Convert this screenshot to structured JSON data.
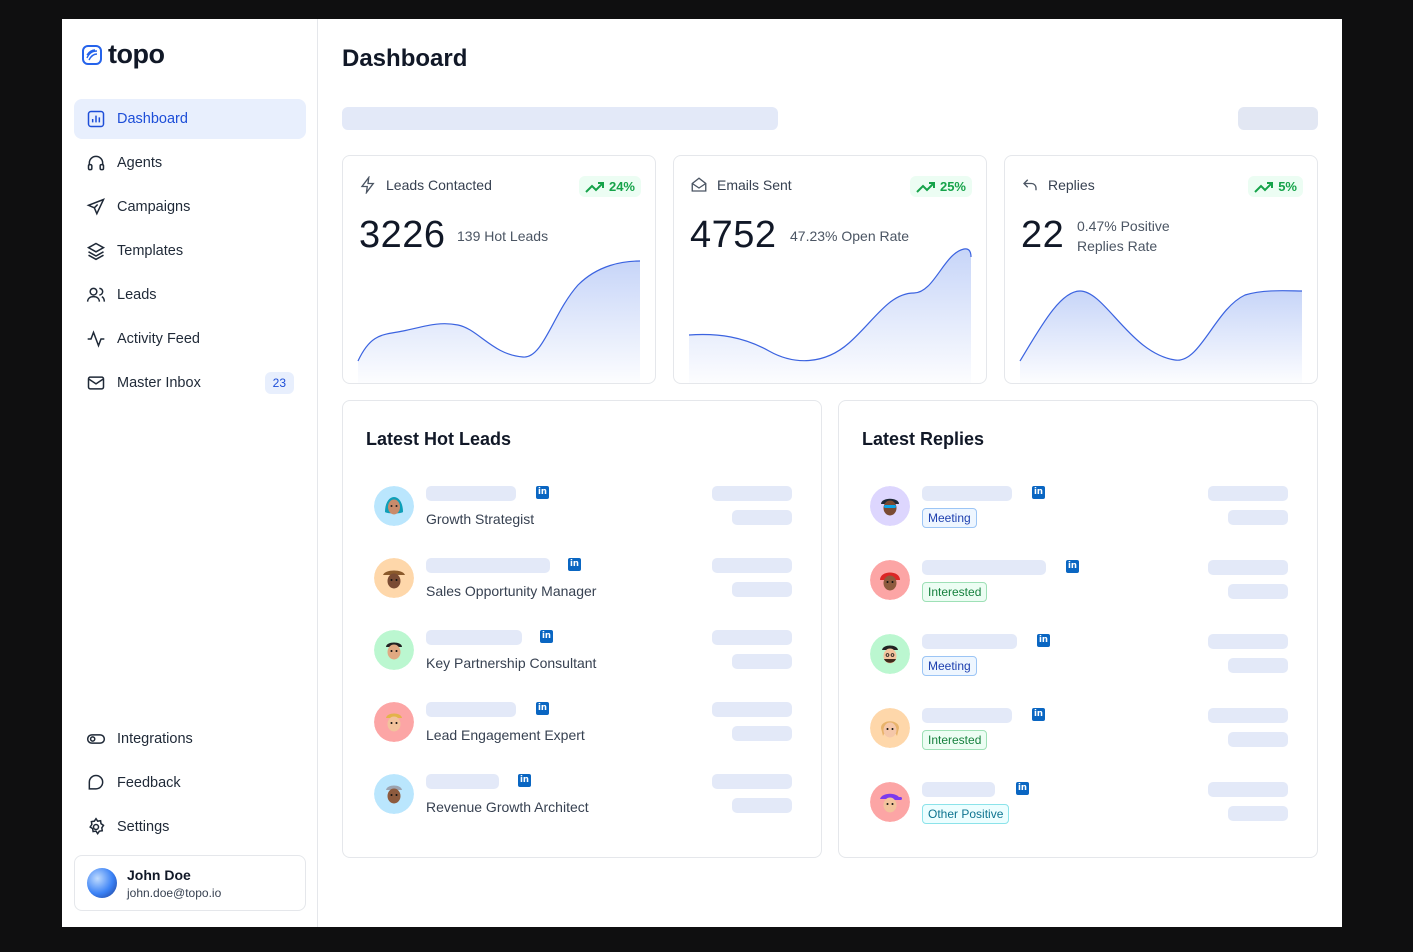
{
  "brand": {
    "name": "topo"
  },
  "nav": {
    "items": [
      {
        "label": "Dashboard",
        "icon": "dashboard-icon",
        "active": true
      },
      {
        "label": "Agents",
        "icon": "headphones-icon"
      },
      {
        "label": "Campaigns",
        "icon": "send-icon"
      },
      {
        "label": "Templates",
        "icon": "layers-icon"
      },
      {
        "label": "Leads",
        "icon": "users-icon"
      },
      {
        "label": "Activity Feed",
        "icon": "activity-icon"
      },
      {
        "label": "Master Inbox",
        "icon": "mail-icon",
        "badge": "23"
      }
    ],
    "bottom": [
      {
        "label": "Integrations",
        "icon": "toggle-icon"
      },
      {
        "label": "Feedback",
        "icon": "chat-icon"
      },
      {
        "label": "Settings",
        "icon": "gear-icon"
      }
    ]
  },
  "user": {
    "name": "John Doe",
    "email": "john.doe@topo.io"
  },
  "page": {
    "title": "Dashboard"
  },
  "stats": [
    {
      "label": "Leads Contacted",
      "value": "3226",
      "sub": "139 Hot Leads",
      "change": "24%"
    },
    {
      "label": "Emails Sent",
      "value": "4752",
      "sub": "47.23% Open Rate",
      "change": "25%"
    },
    {
      "label": "Replies",
      "value": "22",
      "sub_line1": "0.47% Positive",
      "sub_line2": "Replies Rate",
      "change": "5%"
    }
  ],
  "hot_leads": {
    "title": "Latest Hot Leads",
    "rows": [
      {
        "role": "Growth Strategist",
        "avatar_bg": "#bae6fd"
      },
      {
        "role": "Sales Opportunity Manager",
        "avatar_bg": "#fed7aa"
      },
      {
        "role": "Key Partnership Consultant",
        "avatar_bg": "#bbf7d0"
      },
      {
        "role": "Lead Engagement Expert",
        "avatar_bg": "#fecaca"
      },
      {
        "role": "Revenue Growth Architect",
        "avatar_bg": "#bae6fd"
      }
    ]
  },
  "replies": {
    "title": "Latest Replies",
    "rows": [
      {
        "tag": "Meeting",
        "avatar_bg": "#ddd6fe"
      },
      {
        "tag": "Interested",
        "avatar_bg": "#fecaca"
      },
      {
        "tag": "Meeting",
        "avatar_bg": "#bbf7d0"
      },
      {
        "tag": "Interested",
        "avatar_bg": "#fed7aa"
      },
      {
        "tag": "Other Positive",
        "avatar_bg": "#fecaca"
      }
    ]
  },
  "social": {
    "linkedin_glyph": "in"
  },
  "colors": {
    "accent": "#1d4ed8",
    "positive": "#16a34a",
    "chart_line": "#3b63e0",
    "chart_fill": "#c7d5f8"
  }
}
